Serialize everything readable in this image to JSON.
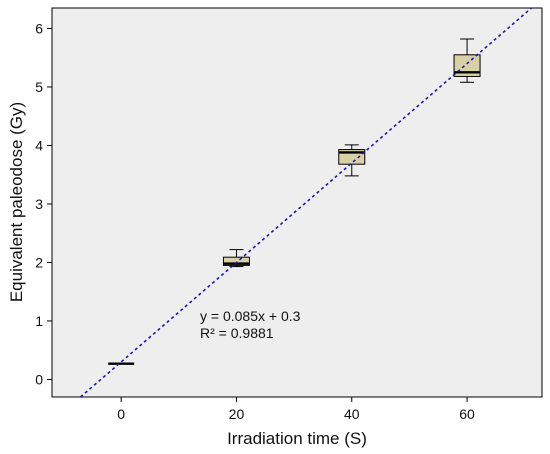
{
  "chart_data": {
    "type": "box",
    "xlabel": "Irradiation time (S)",
    "ylabel": "Equivalent paleodose (Gy)",
    "xlim": [
      -12,
      73
    ],
    "ylim": [
      -0.3,
      6.35
    ],
    "xticks": [
      0,
      20,
      40,
      60
    ],
    "yticks": [
      0,
      1,
      2,
      3,
      4,
      5,
      6
    ],
    "grid": false,
    "background_color": "#eeeeee",
    "box_color": "#d8d0a6",
    "fit_line_color": "#1a1aa8",
    "boxes": [
      {
        "x": 0,
        "min": 0.27,
        "q1": 0.27,
        "median": 0.27,
        "q3": 0.27,
        "max": 0.27
      },
      {
        "x": 20,
        "min": 1.93,
        "q1": 1.95,
        "median": 1.98,
        "q3": 2.09,
        "max": 2.22
      },
      {
        "x": 40,
        "min": 3.48,
        "q1": 3.68,
        "median": 3.88,
        "q3": 3.93,
        "max": 4.01
      },
      {
        "x": 60,
        "min": 5.08,
        "q1": 5.18,
        "median": 5.25,
        "q3": 5.55,
        "max": 5.82
      }
    ],
    "fit": {
      "slope": 0.085,
      "intercept": 0.3,
      "equation": "y = 0.085x + 0.3",
      "r_squared": "R² = 0.9881"
    }
  }
}
